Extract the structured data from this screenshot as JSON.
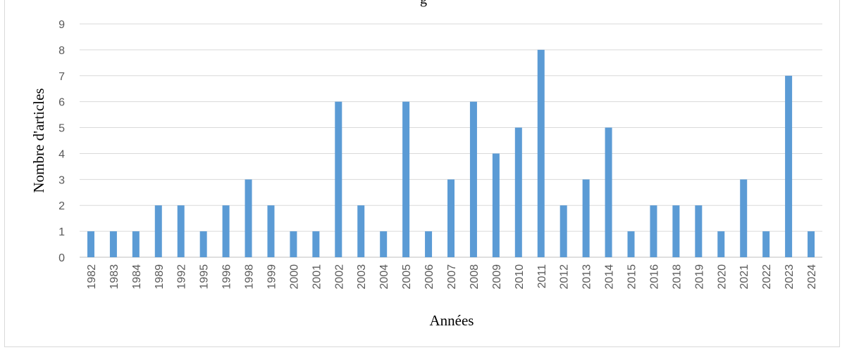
{
  "title_fragment": "g",
  "chart_data": {
    "type": "bar",
    "title": "",
    "xlabel": "Années",
    "ylabel": "Nombre d'articles",
    "ylim": [
      0,
      9
    ],
    "yticks": [
      0,
      1,
      2,
      3,
      4,
      5,
      6,
      7,
      8,
      9
    ],
    "grid": true,
    "color": "#5b9bd5",
    "categories": [
      "1982",
      "1983",
      "1984",
      "1989",
      "1992",
      "1995",
      "1996",
      "1998",
      "1999",
      "2000",
      "2001",
      "2002",
      "2003",
      "2004",
      "2005",
      "2006",
      "2007",
      "2008",
      "2009",
      "2010",
      "2011",
      "2012",
      "2013",
      "2014",
      "2015",
      "2016",
      "2018",
      "2019",
      "2020",
      "2021",
      "2022",
      "2023",
      "2024"
    ],
    "values": [
      1,
      1,
      1,
      2,
      2,
      1,
      2,
      3,
      2,
      1,
      1,
      6,
      2,
      1,
      6,
      1,
      3,
      6,
      4,
      5,
      8,
      2,
      3,
      5,
      1,
      2,
      2,
      2,
      1,
      3,
      1,
      7,
      1
    ]
  }
}
